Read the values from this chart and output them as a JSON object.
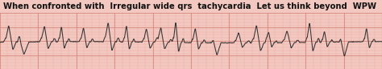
{
  "title": "When confronted with  Irregular wide qrs  tachycardia  Let us think beyond  WPW  syndrome !",
  "title_fontsize": 7.2,
  "title_color": "#111111",
  "title_fontweight": "bold",
  "bg_color": "#f2c8c0",
  "grid_minor_color": "#e8ada5",
  "grid_major_color": "#d4857a",
  "ecg_color": "#333333",
  "ecg_linewidth": 0.75,
  "fig_width": 4.74,
  "fig_height": 0.86,
  "dpi": 100
}
